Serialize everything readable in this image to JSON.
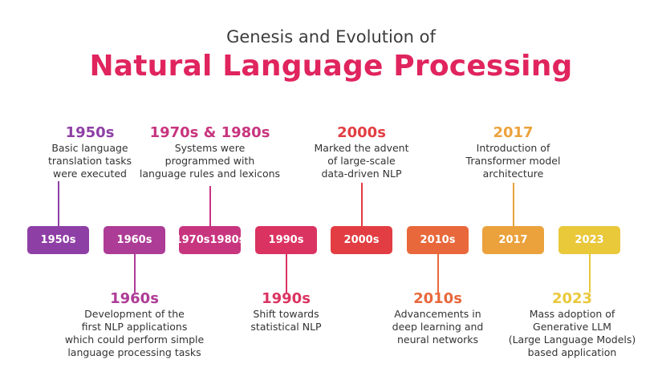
{
  "title": {
    "subtitle": "Genesis and Evolution of",
    "main": "Natural Language Processing",
    "main_color": "#e0245e"
  },
  "timeline": [
    {
      "box_label": "1950s",
      "heading": "1950s",
      "color": "#8e3fa5",
      "position": "above",
      "description": [
        "Basic language",
        "translation tasks",
        "were executed"
      ]
    },
    {
      "box_label": "1960s",
      "heading": "1960s",
      "color": "#ad3c96",
      "position": "below",
      "description": [
        "Development of the",
        "first NLP applications",
        "which could perform simple",
        "language processing tasks"
      ]
    },
    {
      "box_label": "1970s\n1980s",
      "heading": "1970s & 1980s",
      "color": "#c8357f",
      "position": "above",
      "description": [
        "Systems were",
        "programmed with",
        "language rules and lexicons"
      ]
    },
    {
      "box_label": "1990s",
      "heading": "1990s",
      "color": "#db3361",
      "position": "below",
      "description": [
        "Shift towards",
        "statistical NLP"
      ]
    },
    {
      "box_label": "2000s",
      "heading": "2000s",
      "color": "#e23d42",
      "position": "above",
      "description": [
        "Marked the advent",
        "of large-scale",
        "data-driven NLP"
      ]
    },
    {
      "box_label": "2010s",
      "heading": "2010s",
      "color": "#e8683b",
      "position": "below",
      "description": [
        "Advancements in",
        "deep learning and",
        "neural networks"
      ]
    },
    {
      "box_label": "2017",
      "heading": "2017",
      "color": "#eba23c",
      "position": "above",
      "description": [
        "Introduction of",
        "Transformer model",
        "architecture"
      ]
    },
    {
      "box_label": "2023",
      "heading": "2023",
      "color": "#e9c83a",
      "position": "below",
      "description": [
        "Mass adoption of",
        "Generative LLM",
        "(Large Language Models)",
        "based application"
      ]
    }
  ]
}
